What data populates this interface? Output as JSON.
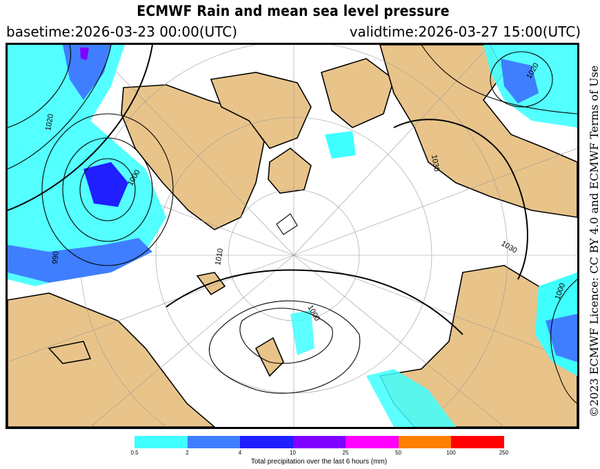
{
  "header": {
    "title": "ECMWF Rain and mean sea level pressure",
    "basetime": "basetime:2026-03-23 00:00(UTC)",
    "validtime": "validtime:2026-03-27 15:00(UTC)"
  },
  "licence": "©2023 ECMWF Licence: CC BY 4.0 and ECMWF Terms of Use",
  "map": {
    "isobar_labels": [
      "1020",
      "1000",
      "990",
      "1010",
      "1000",
      "1030",
      "1030",
      "1020",
      "1000"
    ],
    "colors": {
      "land": "#e8c48a",
      "ocean": "#ffffff",
      "isobar": "#000000",
      "graticule": "#999999"
    }
  },
  "legend": {
    "label": "Total precipitation over the last 6 hours (mm)",
    "ticks": [
      "0.5",
      "2",
      "4",
      "10",
      "25",
      "50",
      "100",
      "250"
    ],
    "colors": [
      "#40ffff",
      "#3f7fff",
      "#1f1fff",
      "#7f00ff",
      "#ff00ff",
      "#ff7f00",
      "#ff0000"
    ]
  }
}
